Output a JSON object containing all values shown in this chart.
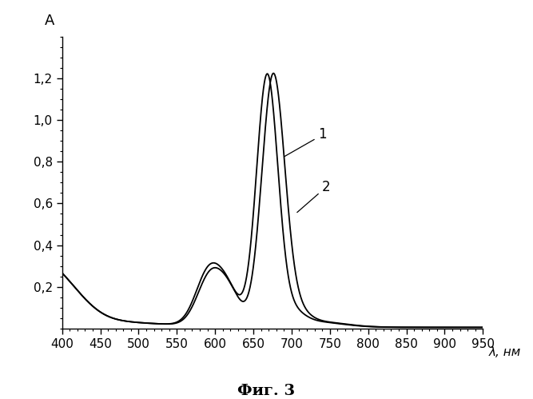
{
  "title": "",
  "xlabel": "λ, нм",
  "ylabel": "A",
  "xlim": [
    400,
    950
  ],
  "ylim": [
    0,
    1.4
  ],
  "x_ticks": [
    400,
    450,
    500,
    550,
    600,
    650,
    700,
    750,
    800,
    850,
    900,
    950
  ],
  "y_ticks": [
    0.2,
    0.4,
    0.6,
    0.8,
    1.0,
    1.2
  ],
  "line_color": "#000000",
  "caption": "Фиг. 3",
  "label1": "1",
  "label2": "2"
}
